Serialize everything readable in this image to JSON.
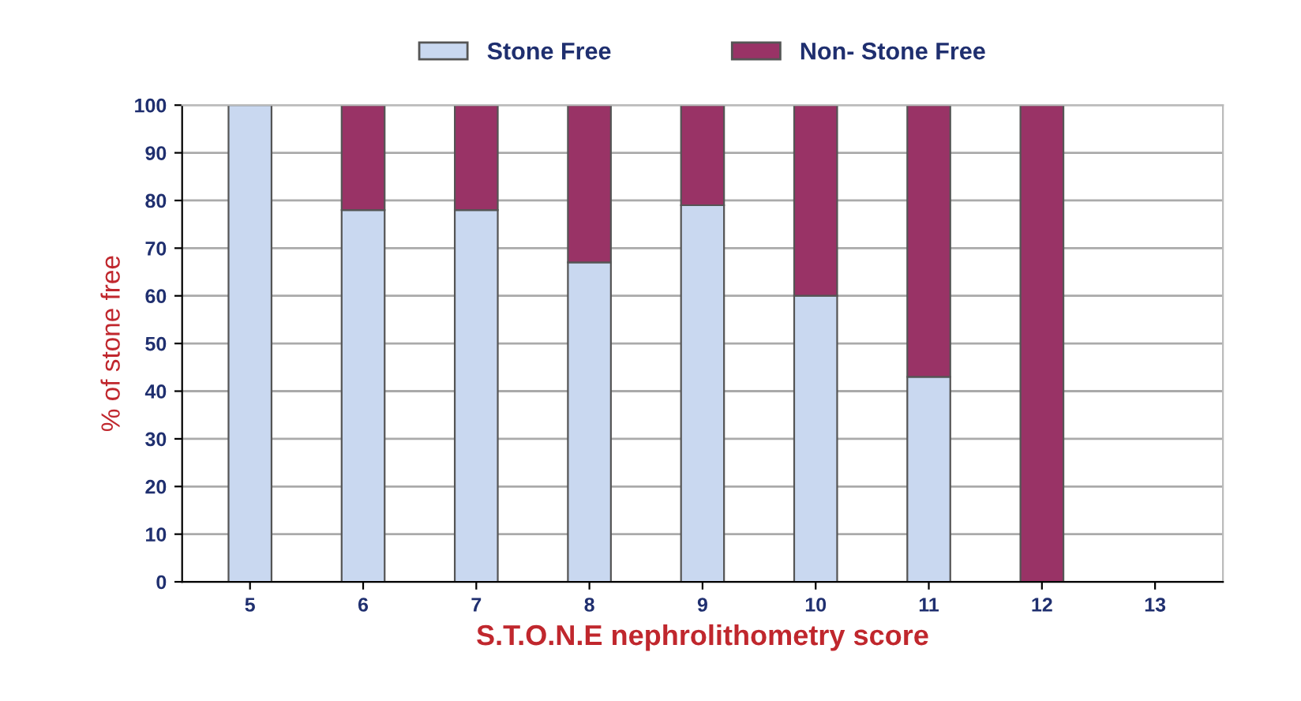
{
  "chart_data": {
    "type": "bar",
    "stacked": true,
    "xlabel": "S.T.O.N.E nephrolithometry score",
    "ylabel": "% of stone free",
    "categories": [
      "5",
      "6",
      "7",
      "8",
      "9",
      "10",
      "11",
      "12",
      "13"
    ],
    "series": [
      {
        "name": "Stone Free",
        "color": "#c9d8f0",
        "values": [
          100,
          78,
          78,
          67,
          79,
          60,
          43,
          0,
          0
        ]
      },
      {
        "name": "Non- Stone Free",
        "color": "#993366",
        "values": [
          0,
          22,
          22,
          33,
          21,
          40,
          57,
          100,
          0
        ]
      }
    ],
    "ylim": [
      0,
      100
    ],
    "yticks": [
      0,
      10,
      20,
      30,
      40,
      50,
      60,
      70,
      80,
      90,
      100
    ],
    "grid": "y",
    "legend": "top"
  }
}
